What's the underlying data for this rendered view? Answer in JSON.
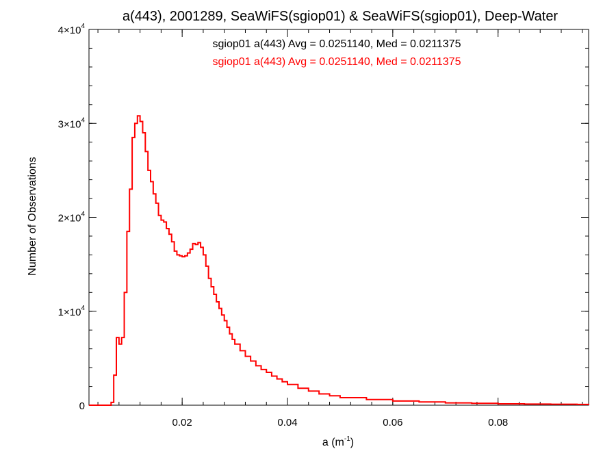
{
  "chart_data": {
    "type": "line",
    "title": "a(443), 2001289, SeaWiFS(sgiop01) & SeaWiFS(sgiop01), Deep-Water",
    "xlabel_base": "a (m",
    "xlabel_exp": "-1",
    "xlabel_close": ")",
    "ylabel": "Number of Observations",
    "xlim": [
      0.0023,
      0.0972
    ],
    "ylim": [
      0,
      40000
    ],
    "xticks": [
      {
        "value": 0.02,
        "label": "0.02"
      },
      {
        "value": 0.04,
        "label": "0.04"
      },
      {
        "value": 0.06,
        "label": "0.06"
      },
      {
        "value": 0.08,
        "label": "0.08"
      }
    ],
    "yticks": [
      {
        "value": 0,
        "mant": "0",
        "exp": ""
      },
      {
        "value": 10000,
        "mant": "1×10",
        "exp": "4"
      },
      {
        "value": 20000,
        "mant": "2×10",
        "exp": "4"
      },
      {
        "value": 30000,
        "mant": "3×10",
        "exp": "4"
      },
      {
        "value": 40000,
        "mant": "4×10",
        "exp": "4"
      }
    ],
    "grid": false,
    "annotations": [
      {
        "text": "sgiop01 a(443) Avg = 0.0251140, Med = 0.0211375",
        "color": "#000000"
      },
      {
        "text": "sgiop01 a(443) Avg = 0.0251140, Med = 0.0211375",
        "color": "#ff0000"
      }
    ],
    "series": [
      {
        "color": "#ff0000",
        "step": true,
        "x": [
          0.0023,
          0.0065,
          0.007,
          0.0075,
          0.008,
          0.0085,
          0.009,
          0.0095,
          0.01,
          0.0105,
          0.011,
          0.0115,
          0.012,
          0.0125,
          0.013,
          0.0135,
          0.014,
          0.0145,
          0.015,
          0.0155,
          0.016,
          0.0165,
          0.017,
          0.0175,
          0.018,
          0.0185,
          0.019,
          0.0195,
          0.02,
          0.0205,
          0.021,
          0.0215,
          0.022,
          0.0225,
          0.023,
          0.0235,
          0.024,
          0.0245,
          0.025,
          0.0255,
          0.026,
          0.0265,
          0.027,
          0.0275,
          0.028,
          0.0285,
          0.029,
          0.0295,
          0.03,
          0.031,
          0.032,
          0.033,
          0.034,
          0.035,
          0.036,
          0.037,
          0.038,
          0.039,
          0.04,
          0.042,
          0.044,
          0.046,
          0.048,
          0.05,
          0.055,
          0.06,
          0.065,
          0.07,
          0.075,
          0.08,
          0.085,
          0.09,
          0.095,
          0.0972
        ],
        "y": [
          0,
          300,
          3200,
          7200,
          6500,
          7200,
          12000,
          18500,
          23000,
          28500,
          30000,
          30800,
          30200,
          29000,
          27000,
          25000,
          23800,
          22500,
          21500,
          20200,
          19700,
          19500,
          18800,
          18200,
          17400,
          16400,
          16000,
          15900,
          15800,
          15900,
          16200,
          16600,
          17200,
          17100,
          17300,
          16800,
          16000,
          14800,
          13500,
          12600,
          11800,
          11000,
          10300,
          9600,
          9000,
          8300,
          7600,
          7000,
          6500,
          5800,
          5200,
          4700,
          4200,
          3800,
          3500,
          3100,
          2800,
          2500,
          2200,
          1800,
          1500,
          1200,
          1000,
          800,
          600,
          450,
          350,
          250,
          200,
          150,
          120,
          100,
          80,
          0
        ]
      }
    ]
  }
}
